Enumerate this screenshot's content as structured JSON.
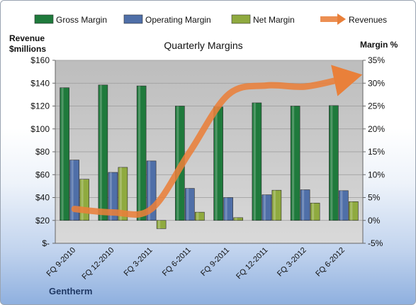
{
  "chart_data": {
    "type": "bar",
    "title": "Quarterly Margins",
    "left_axis_title": [
      "Revenue",
      "$millions"
    ],
    "right_axis_title": "Margin %",
    "categories": [
      "FQ 9-2010",
      "FQ 12-2010",
      "FQ 3-2011",
      "FQ 6-2011",
      "FQ 9-2011",
      "FQ 12-2011",
      "FQ 3-2012",
      "FQ 6-2012"
    ],
    "left_ticks": [
      "$-",
      "$20",
      "$40",
      "$60",
      "$80",
      "$100",
      "$120",
      "$140",
      "$160"
    ],
    "right_ticks": [
      "-5%",
      "0%",
      "5%",
      "10%",
      "15%",
      "20%",
      "25%",
      "30%",
      "35%"
    ],
    "left_ylim": [
      0,
      160
    ],
    "right_ylim": [
      -5,
      35
    ],
    "series": [
      {
        "name": "Gross Margin",
        "axis": "right",
        "color": "#1f7a3c",
        "values": [
          29.0,
          29.6,
          29.4,
          25.0,
          24.8,
          25.7,
          25.0,
          25.1
        ]
      },
      {
        "name": "Operating Margin",
        "axis": "right",
        "color": "#4f6fa8",
        "values": [
          13.2,
          10.5,
          13.0,
          7.0,
          5.0,
          5.6,
          6.7,
          6.5
        ]
      },
      {
        "name": "Net Margin",
        "axis": "right",
        "color": "#8faa3f",
        "values": [
          9.0,
          11.6,
          -1.8,
          1.8,
          0.6,
          6.6,
          3.8,
          4.1
        ]
      },
      {
        "name": "Revenues",
        "axis": "left",
        "type": "line",
        "color": "#e9803a",
        "values": [
          30,
          27,
          30,
          80,
          130,
          138,
          137,
          144
        ]
      }
    ],
    "grid": true,
    "legend_position": "top"
  },
  "company": "Gentherm"
}
